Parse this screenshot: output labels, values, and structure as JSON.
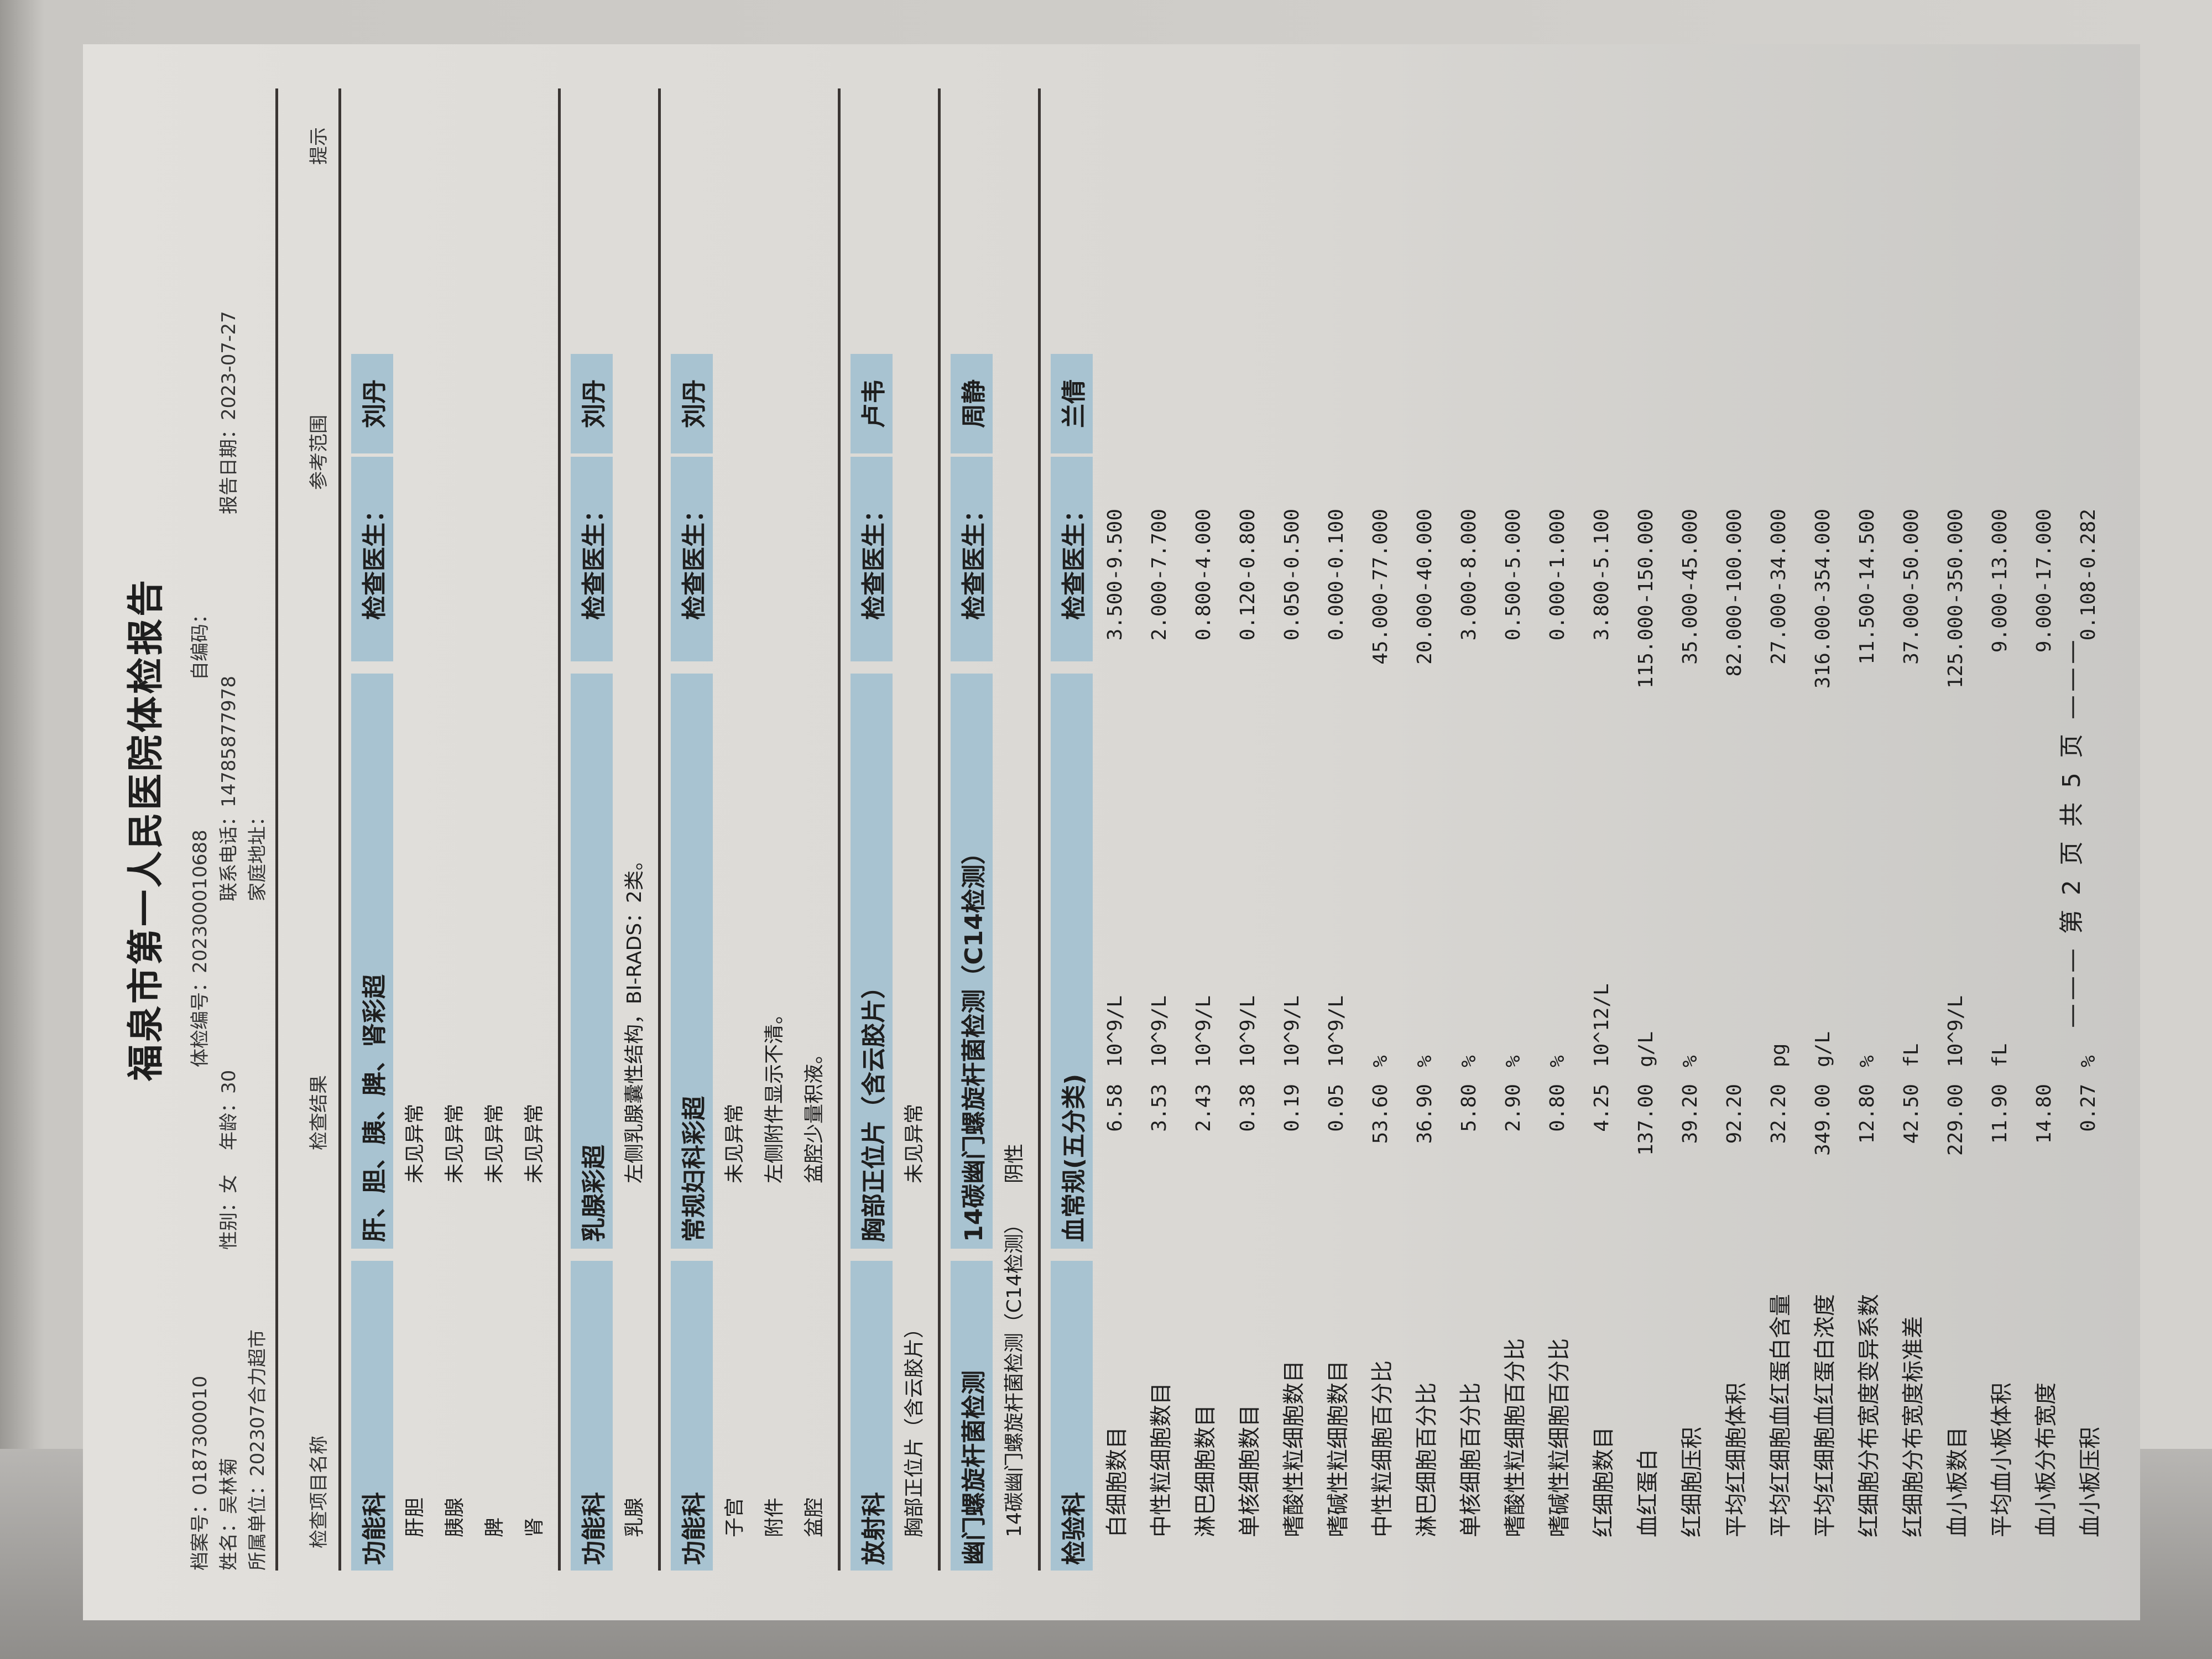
{
  "report": {
    "title": "福泉市第一人民医院体检报告",
    "archive_no": "档案号：0187300010",
    "exam_no": "体检编号：202300010688",
    "self_code": "自编码：",
    "name": "姓名：吴林菊",
    "gender": "性别：女",
    "age": "年龄：30",
    "phone": "联系电话：14785877978",
    "report_date": "报告日期：2023-07-27",
    "unit": "所属单位：202307合力超市",
    "address": "家庭地址："
  },
  "columns": {
    "name": "检查项目名称",
    "result": "检查结果",
    "reference": "参考范围",
    "tip": "提示"
  },
  "sections": [
    {
      "dept": "功能科",
      "item": "肝、胆、胰、脾、肾彩超",
      "doctor_label": "检查医生：",
      "doctor": "刘丹",
      "rows": [
        [
          "肝胆",
          "未见异常"
        ],
        [
          "胰腺",
          "未见异常"
        ],
        [
          "脾",
          "未见异常"
        ],
        [
          "肾",
          "未见异常"
        ]
      ]
    },
    {
      "dept": "功能科",
      "item": "乳腺彩超",
      "doctor_label": "检查医生：",
      "doctor": "刘丹",
      "rows": [
        [
          "乳腺",
          "左侧乳腺囊性结构，BI-RADS：2类。"
        ]
      ]
    },
    {
      "dept": "功能科",
      "item": "常规妇科彩超",
      "doctor_label": "检查医生：",
      "doctor": "刘丹",
      "rows": [
        [
          "子宫",
          "未见异常"
        ],
        [
          "附件",
          "左侧附件显示不清。"
        ],
        [
          "盆腔",
          "盆腔少量积液。"
        ]
      ]
    },
    {
      "dept": "放射科",
      "item": "胸部正位片（含云胶片）",
      "doctor_label": "检查医生：",
      "doctor": "卢韦",
      "rows": [
        [
          "胸部正位片（含云胶片）",
          "未见异常"
        ]
      ]
    },
    {
      "dept": "幽门螺旋杆菌检测",
      "item": "14碳幽门螺旋杆菌检测（C14检测）",
      "doctor_label": "检查医生：",
      "doctor": "周静",
      "rows": [
        [
          "14碳幽门螺旋杆菌检测（C14检测）",
          "阴性"
        ]
      ]
    }
  ],
  "lab": {
    "dept": "检验科",
    "item": "血常规(五分类)",
    "doctor_label": "检查医生：",
    "doctor": "兰倩",
    "rows": [
      [
        "白细胞数目",
        "6.58",
        "10^9/L",
        "3.500-9.500"
      ],
      [
        "中性粒细胞数目",
        "3.53",
        "10^9/L",
        "2.000-7.700"
      ],
      [
        "淋巴细胞数目",
        "2.43",
        "10^9/L",
        "0.800-4.000"
      ],
      [
        "单核细胞数目",
        "0.38",
        "10^9/L",
        "0.120-0.800"
      ],
      [
        "嗜酸性粒细胞数目",
        "0.19",
        "10^9/L",
        "0.050-0.500"
      ],
      [
        "嗜碱性粒细胞数目",
        "0.05",
        "10^9/L",
        "0.000-0.100"
      ],
      [
        "中性粒细胞百分比",
        "53.60",
        "%",
        "45.000-77.000"
      ],
      [
        "淋巴细胞百分比",
        "36.90",
        "%",
        "20.000-40.000"
      ],
      [
        "单核细胞百分比",
        "5.80",
        "%",
        "3.000-8.000"
      ],
      [
        "嗜酸性粒细胞百分比",
        "2.90",
        "%",
        "0.500-5.000"
      ],
      [
        "嗜碱性粒细胞百分比",
        "0.80",
        "%",
        "0.000-1.000"
      ],
      [
        "红细胞数目",
        "4.25",
        "10^12/L",
        "3.800-5.100"
      ],
      [
        "血红蛋白",
        "137.00",
        "g/L",
        "115.000-150.000"
      ],
      [
        "红细胞压积",
        "39.20",
        "%",
        "35.000-45.000"
      ],
      [
        "平均红细胞体积",
        "92.20",
        "",
        "82.000-100.000"
      ],
      [
        "平均红细胞血红蛋白含量",
        "32.20",
        "pg",
        "27.000-34.000"
      ],
      [
        "平均红细胞血红蛋白浓度",
        "349.00",
        "g/L",
        "316.000-354.000"
      ],
      [
        "红细胞分布宽度变异系数",
        "12.80",
        "%",
        "11.500-14.500"
      ],
      [
        "红细胞分布宽度标准差",
        "42.50",
        "fL",
        "37.000-50.000"
      ],
      [
        "血小板数目",
        "229.00",
        "10^9/L",
        "125.000-350.000"
      ],
      [
        "平均血小板体积",
        "11.90",
        "fL",
        "9.000-13.000"
      ],
      [
        "血小板分布宽度",
        "14.80",
        "",
        "9.000-17.000"
      ],
      [
        "血小板压积",
        "0.27",
        "%",
        "0.108-0.282"
      ]
    ]
  },
  "footer": "——— 第 2 页 共 5 页 ———",
  "colors": {
    "section_bar": "#a8c3d1",
    "paper": "#e2e0dc",
    "text": "#1e1e1e"
  }
}
